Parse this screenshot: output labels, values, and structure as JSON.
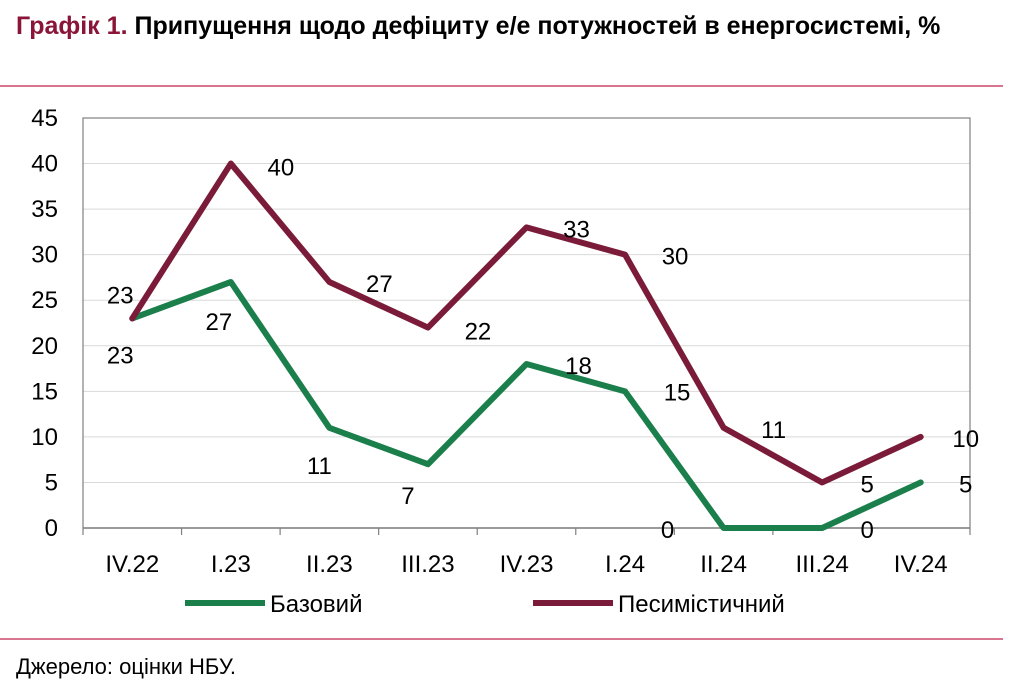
{
  "title": {
    "number": "Графік 1.",
    "text": "Припущення щодо дефіциту е/е потужностей в енергосистемі, %"
  },
  "source": "Джерело: оцінки НБУ.",
  "colors": {
    "base": "#1b7f4c",
    "pessimistic": "#7b1b3a",
    "accent": "#8a1538",
    "rule": "#d9768f"
  },
  "chart_data": {
    "type": "line",
    "categories": [
      "IV.22",
      "I.23",
      "II.23",
      "III.23",
      "IV.23",
      "I.24",
      "II.24",
      "III.24",
      "IV.24"
    ],
    "series": [
      {
        "name": "Базовий",
        "values": [
          23,
          27,
          11,
          7,
          18,
          15,
          0,
          0,
          5
        ]
      },
      {
        "name": "Песимістичний",
        "values": [
          23,
          40,
          27,
          22,
          33,
          30,
          11,
          5,
          10
        ]
      }
    ],
    "ylim": [
      0,
      45
    ],
    "yticks": [
      0,
      5,
      10,
      15,
      20,
      25,
      30,
      35,
      40,
      45
    ],
    "grid": true,
    "legend": "bottom"
  }
}
